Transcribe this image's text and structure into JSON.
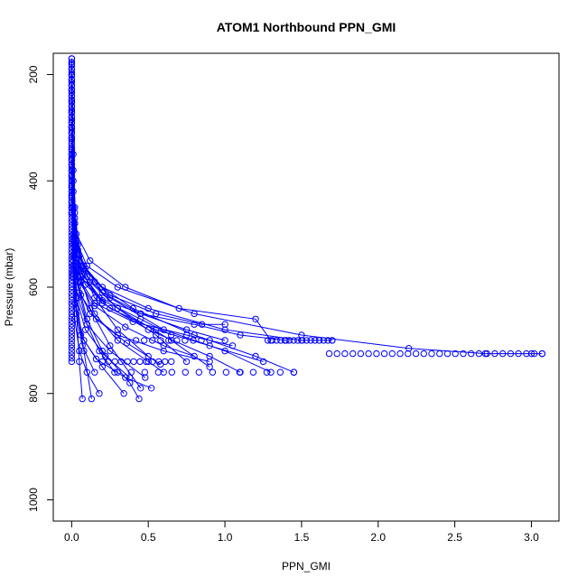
{
  "chart_data": {
    "type": "line",
    "title": "ATOM1 Northbound PPN_GMI",
    "xlabel": "PPN_GMI",
    "ylabel": "Pressure (mbar)",
    "xlim": [
      -0.12,
      3.18
    ],
    "ylim": [
      1040,
      160
    ],
    "y_reversed": true,
    "xticks": [
      0.0,
      0.5,
      1.0,
      1.5,
      2.0,
      2.5,
      3.0
    ],
    "xtick_labels": [
      "0.0",
      "0.5",
      "1.0",
      "1.5",
      "2.0",
      "2.5",
      "3.0"
    ],
    "yticks": [
      200,
      400,
      600,
      800,
      1000
    ],
    "ytick_labels": [
      "200",
      "400",
      "600",
      "800",
      "1000"
    ],
    "grid": false,
    "legend": "none",
    "color": "#0000ff",
    "marker": "open-circle",
    "series": [
      {
        "x": [
          0.0,
          0.0,
          0.01,
          0.01,
          0.02,
          0.04,
          0.08,
          0.2,
          0.5,
          1.0,
          1.5,
          1.7
        ],
        "y": [
          170,
          300,
          400,
          450,
          500,
          530,
          560,
          600,
          640,
          680,
          700,
          700
        ]
      },
      {
        "x": [
          0.0,
          0.01,
          0.02,
          0.04,
          0.1,
          0.3,
          0.8,
          1.5,
          2.2,
          2.7,
          3.0,
          3.07
        ],
        "y": [
          180,
          350,
          460,
          520,
          560,
          600,
          650,
          690,
          715,
          725,
          725,
          725
        ]
      },
      {
        "x": [
          0.0,
          0.01,
          0.02,
          0.05,
          0.15,
          0.4,
          0.8,
          1.2,
          1.45
        ],
        "y": [
          190,
          380,
          480,
          540,
          590,
          640,
          690,
          730,
          760
        ]
      },
      {
        "x": [
          0.0,
          0.01,
          0.03,
          0.08,
          0.2,
          0.45,
          0.75,
          1.0
        ],
        "y": [
          200,
          420,
          510,
          560,
          610,
          650,
          680,
          700
        ]
      },
      {
        "x": [
          0.0,
          0.02,
          0.05,
          0.12,
          0.3,
          0.55,
          0.75
        ],
        "y": [
          210,
          450,
          540,
          590,
          640,
          690,
          740
        ]
      },
      {
        "x": [
          0.0,
          0.02,
          0.06,
          0.15,
          0.3,
          0.5
        ],
        "y": [
          220,
          470,
          560,
          620,
          680,
          730
        ]
      },
      {
        "x": [
          0.0,
          0.02,
          0.05,
          0.12,
          0.25,
          0.45
        ],
        "y": [
          230,
          480,
          570,
          640,
          710,
          790
        ]
      },
      {
        "x": [
          0.0,
          0.01,
          0.04,
          0.1,
          0.2,
          0.38,
          0.44
        ],
        "y": [
          240,
          500,
          590,
          660,
          720,
          780,
          810
        ]
      },
      {
        "x": [
          0.0,
          0.01,
          0.03,
          0.08,
          0.13
        ],
        "y": [
          250,
          510,
          620,
          720,
          810
        ]
      },
      {
        "x": [
          0.0,
          0.01,
          0.03,
          0.05,
          0.07
        ],
        "y": [
          260,
          520,
          640,
          740,
          810
        ]
      },
      {
        "x": [
          0.0,
          0.02,
          0.08,
          0.25,
          0.6,
          1.0,
          1.3
        ],
        "y": [
          270,
          500,
          560,
          620,
          680,
          720,
          760
        ]
      },
      {
        "x": [
          0.0,
          0.02,
          0.06,
          0.2,
          0.5,
          0.9,
          1.1
        ],
        "y": [
          280,
          510,
          570,
          630,
          680,
          730,
          760
        ]
      },
      {
        "x": [
          0.0,
          0.03,
          0.1,
          0.3,
          0.65,
          0.9
        ],
        "y": [
          290,
          520,
          580,
          640,
          700,
          750
        ]
      },
      {
        "x": [
          0.0,
          0.03,
          0.12,
          0.35,
          0.7,
          1.2,
          1.3
        ],
        "y": [
          300,
          500,
          550,
          600,
          640,
          660,
          700
        ]
      },
      {
        "x": [
          0.0,
          0.02,
          0.08,
          0.25,
          0.55,
          0.85,
          1.0
        ],
        "y": [
          310,
          510,
          565,
          615,
          650,
          670,
          670
        ]
      },
      {
        "x": [
          0.0,
          0.02,
          0.07,
          0.2,
          0.45,
          0.65
        ],
        "y": [
          320,
          520,
          575,
          625,
          660,
          690
        ]
      },
      {
        "x": [
          0.0,
          0.02,
          0.06,
          0.15,
          0.3,
          0.5,
          0.6
        ],
        "y": [
          330,
          530,
          590,
          650,
          700,
          740,
          760
        ]
      },
      {
        "x": [
          0.0,
          0.02,
          0.05,
          0.1,
          0.18,
          0.28
        ],
        "y": [
          340,
          540,
          610,
          670,
          720,
          760
        ]
      },
      {
        "x": [
          0.0,
          0.01,
          0.04,
          0.12,
          0.3,
          0.6,
          0.9
        ],
        "y": [
          350,
          540,
          600,
          650,
          690,
          720,
          740
        ]
      },
      {
        "x": [
          0.0,
          0.01,
          0.03,
          0.09,
          0.22,
          0.38
        ],
        "y": [
          360,
          550,
          620,
          680,
          730,
          770
        ]
      },
      {
        "x": [
          0.0,
          0.01,
          0.04,
          0.15,
          0.4,
          0.75,
          1.05
        ],
        "y": [
          370,
          520,
          580,
          630,
          665,
          690,
          710
        ]
      },
      {
        "x": [
          0.0,
          0.01,
          0.02,
          0.06,
          0.16,
          0.35,
          0.52
        ],
        "y": [
          380,
          560,
          630,
          690,
          735,
          770,
          790
        ]
      },
      {
        "x": [
          0.0,
          0.01,
          0.03,
          0.07,
          0.15
        ],
        "y": [
          390,
          570,
          650,
          710,
          760
        ]
      },
      {
        "x": [
          0.0,
          0.01,
          0.02,
          0.05,
          0.1,
          0.18
        ],
        "y": [
          400,
          580,
          660,
          720,
          760,
          800
        ]
      },
      {
        "x": [
          0.0,
          0.02,
          0.06,
          0.18,
          0.45,
          0.8,
          1.1,
          1.4
        ],
        "y": [
          410,
          530,
          580,
          620,
          650,
          670,
          690,
          700
        ]
      },
      {
        "x": [
          0.0,
          0.02,
          0.05,
          0.15,
          0.35,
          0.6,
          0.8
        ],
        "y": [
          420,
          540,
          590,
          635,
          675,
          710,
          730
        ]
      },
      {
        "x": [
          0.0,
          0.01,
          0.04,
          0.1,
          0.25,
          0.48
        ],
        "y": [
          430,
          560,
          620,
          670,
          720,
          770
        ]
      },
      {
        "x": [
          0.0,
          0.01,
          0.03,
          0.08,
          0.2,
          0.34
        ],
        "y": [
          440,
          575,
          640,
          700,
          750,
          800
        ]
      },
      {
        "x": [
          0.0,
          0.03,
          0.09,
          0.25,
          0.55,
          0.9,
          1.25
        ],
        "y": [
          450,
          545,
          595,
          640,
          680,
          710,
          740
        ]
      },
      {
        "x": [
          0.0,
          0.02,
          0.06,
          0.16,
          0.36,
          0.58
        ],
        "y": [
          460,
          560,
          615,
          660,
          705,
          745
        ]
      }
    ],
    "point_runs": [
      {
        "x_start": 1.28,
        "x_end": 1.7,
        "y": 700,
        "count": 16
      },
      {
        "x_start": 1.68,
        "x_end": 3.07,
        "y": 725,
        "count": 28
      },
      {
        "x_start": 0.2,
        "x_end": 0.65,
        "y": 740,
        "count": 12
      },
      {
        "x_start": 0.3,
        "x_end": 1.45,
        "y": 760,
        "count": 14
      },
      {
        "x_start": 0.42,
        "x_end": 0.9,
        "y": 700,
        "count": 10
      },
      {
        "x_start": 0.0,
        "x_end": 0.0,
        "y": 170,
        "y_end": 740,
        "count": 90
      }
    ]
  }
}
